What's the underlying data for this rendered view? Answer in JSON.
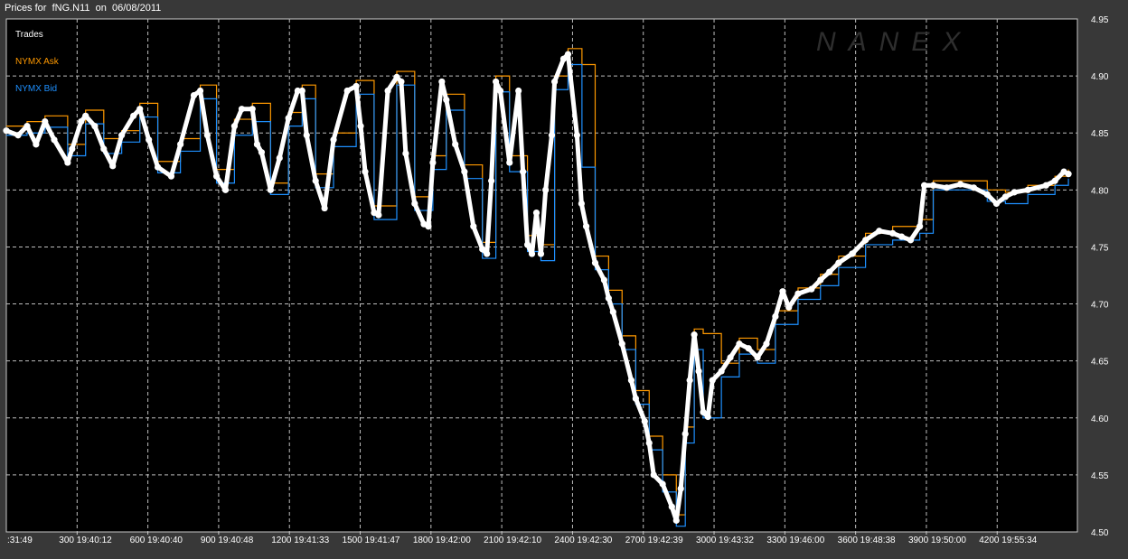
{
  "title": "Prices for  fNG.N11  on  06/08/2011",
  "watermark": "NANEX",
  "chart_data": {
    "type": "line",
    "title": "Prices for  fNG.N11  on  06/08/2011",
    "xlabel": "",
    "ylabel": "",
    "xlim": [
      0,
      4540
    ],
    "ylim": [
      4.5,
      4.95
    ],
    "grid": true,
    "legend_placement": "top-left",
    "x_tick_labels": [
      ":31:49",
      "300 19:40:12",
      "600 19:40:40",
      "900 19:40:48",
      "1200 19:41:33",
      "1500 19:41:47",
      "1800 19:42:00",
      "2100 19:42:10",
      "2400 19:42:30",
      "2700 19:42:39",
      "3000 19:43:32",
      "3300 19:46:00",
      "3600 19:48:38",
      "3900 19:50:00",
      "4200 19:55:34"
    ],
    "y_ticks": [
      "4.95",
      "4.90",
      "4.85",
      "4.80",
      "4.75",
      "4.70",
      "4.65",
      "4.60",
      "4.55",
      "4.50"
    ],
    "colors": {
      "trades": "#ffffff",
      "ask": "#ff9900",
      "bid": "#1e90ff"
    },
    "series": [
      {
        "name": "Trades",
        "style": "markers",
        "x": [
          0,
          50,
          88,
          126,
          164,
          203,
          260,
          279,
          317,
          336,
          375,
          413,
          451,
          489,
          539,
          566,
          604,
          642,
          699,
          738,
          795,
          822,
          852,
          891,
          929,
          967,
          998,
          1043,
          1063,
          1082,
          1120,
          1158,
          1196,
          1235,
          1254,
          1273,
          1311,
          1349,
          1387,
          1445,
          1483,
          1502,
          1521,
          1559,
          1578,
          1617,
          1655,
          1674,
          1693,
          1731,
          1770,
          1789,
          1808,
          1846,
          1865,
          1903,
          1942,
          1980,
          2018,
          2037,
          2056,
          2075,
          2094,
          2133,
          2171,
          2190,
          2209,
          2228,
          2247,
          2266,
          2286,
          2312,
          2324,
          2362,
          2381,
          2419,
          2438,
          2458,
          2496,
          2534,
          2553,
          2572,
          2610,
          2649,
          2668,
          2706,
          2725,
          2744,
          2782,
          2821,
          2840,
          2859,
          2878,
          2897,
          2916,
          2935,
          2954,
          2974,
          2993,
          3031,
          3069,
          3107,
          3146,
          3184,
          3222,
          3260,
          3291,
          3317,
          3356,
          3413,
          3451,
          3489,
          3528,
          3585,
          3642,
          3700,
          3757,
          3795,
          3833,
          3872,
          3891,
          3929,
          3986,
          4044,
          4101,
          4158,
          4197,
          4235,
          4273,
          4330,
          4407,
          4445,
          4483,
          4502
        ],
        "values": [
          4.852,
          4.848,
          4.856,
          4.84,
          4.86,
          4.844,
          4.824,
          4.836,
          4.86,
          4.865,
          4.856,
          4.836,
          4.821,
          4.848,
          4.865,
          4.871,
          4.844,
          4.82,
          4.812,
          4.84,
          4.883,
          4.887,
          4.848,
          4.812,
          4.8,
          4.856,
          4.871,
          4.871,
          4.84,
          4.833,
          4.8,
          4.828,
          4.863,
          4.887,
          4.887,
          4.848,
          4.808,
          4.784,
          4.844,
          4.887,
          4.891,
          4.856,
          4.816,
          4.78,
          4.778,
          4.887,
          4.899,
          4.895,
          4.832,
          4.788,
          4.77,
          4.768,
          4.824,
          4.895,
          4.879,
          4.84,
          4.816,
          4.768,
          4.748,
          4.744,
          4.808,
          4.895,
          4.887,
          4.824,
          4.887,
          4.816,
          4.752,
          4.744,
          4.78,
          4.744,
          4.8,
          4.848,
          4.895,
          4.915,
          4.919,
          4.848,
          4.788,
          4.768,
          4.736,
          4.721,
          4.705,
          4.693,
          4.665,
          4.633,
          4.617,
          4.597,
          4.578,
          4.55,
          4.542,
          4.522,
          4.51,
          4.538,
          4.586,
          4.633,
          4.673,
          4.641,
          4.605,
          4.601,
          4.633,
          4.641,
          4.653,
          4.665,
          4.661,
          4.653,
          4.665,
          4.689,
          4.711,
          4.697,
          4.709,
          4.713,
          4.721,
          4.728,
          4.736,
          4.744,
          4.756,
          4.764,
          4.762,
          4.759,
          4.756,
          4.768,
          4.804,
          4.804,
          4.802,
          4.805,
          4.802,
          4.796,
          4.788,
          4.794,
          4.798,
          4.8,
          4.804,
          4.808,
          4.816,
          4.814
        ]
      },
      {
        "name": "NYMX Ask",
        "style": "step",
        "x": [
          0,
          88,
          164,
          260,
          336,
          413,
          489,
          566,
          642,
          738,
          822,
          891,
          967,
          1043,
          1120,
          1196,
          1254,
          1311,
          1387,
          1483,
          1559,
          1655,
          1731,
          1808,
          1865,
          1942,
          2018,
          2075,
          2133,
          2209,
          2266,
          2324,
          2381,
          2440,
          2496,
          2553,
          2610,
          2668,
          2725,
          2782,
          2840,
          2878,
          2916,
          2954,
          3031,
          3107,
          3184,
          3260,
          3356,
          3451,
          3528,
          3642,
          3757,
          3872,
          3929,
          4044,
          4158,
          4235,
          4330,
          4445,
          4502
        ],
        "values": [
          4.856,
          4.86,
          4.865,
          4.84,
          4.87,
          4.845,
          4.852,
          4.876,
          4.825,
          4.845,
          4.892,
          4.818,
          4.862,
          4.876,
          4.806,
          4.868,
          4.892,
          4.814,
          4.85,
          4.896,
          4.786,
          4.904,
          4.794,
          4.83,
          4.884,
          4.822,
          4.754,
          4.9,
          4.83,
          4.76,
          4.752,
          4.9,
          4.924,
          4.91,
          4.742,
          4.712,
          4.672,
          4.624,
          4.584,
          4.55,
          4.515,
          4.592,
          4.678,
          4.674,
          4.648,
          4.67,
          4.66,
          4.694,
          4.714,
          4.726,
          4.742,
          4.762,
          4.768,
          4.774,
          4.808,
          4.808,
          4.8,
          4.798,
          4.804,
          4.812,
          4.818
        ]
      },
      {
        "name": "NYMX Bid",
        "style": "step",
        "x": [
          0,
          88,
          164,
          260,
          336,
          413,
          489,
          566,
          642,
          738,
          822,
          891,
          967,
          1043,
          1120,
          1196,
          1254,
          1311,
          1387,
          1483,
          1559,
          1655,
          1731,
          1808,
          1865,
          1942,
          2018,
          2075,
          2133,
          2209,
          2266,
          2324,
          2381,
          2440,
          2496,
          2553,
          2610,
          2668,
          2725,
          2782,
          2840,
          2878,
          2916,
          2954,
          3031,
          3107,
          3184,
          3260,
          3356,
          3451,
          3528,
          3642,
          3757,
          3872,
          3929,
          4044,
          4158,
          4235,
          4330,
          4445,
          4502
        ],
        "values": [
          4.848,
          4.85,
          4.855,
          4.83,
          4.858,
          4.832,
          4.842,
          4.864,
          4.815,
          4.834,
          4.88,
          4.806,
          4.848,
          4.86,
          4.796,
          4.856,
          4.88,
          4.802,
          4.838,
          4.884,
          4.774,
          4.892,
          4.782,
          4.818,
          4.87,
          4.81,
          4.74,
          4.886,
          4.816,
          4.746,
          4.738,
          4.888,
          4.91,
          4.82,
          4.73,
          4.7,
          4.66,
          4.612,
          4.572,
          4.535,
          4.505,
          4.578,
          4.66,
          4.6,
          4.636,
          4.656,
          4.648,
          4.682,
          4.704,
          4.716,
          4.732,
          4.752,
          4.756,
          4.762,
          4.8,
          4.8,
          4.79,
          4.788,
          4.796,
          4.804,
          4.81
        ]
      }
    ]
  }
}
